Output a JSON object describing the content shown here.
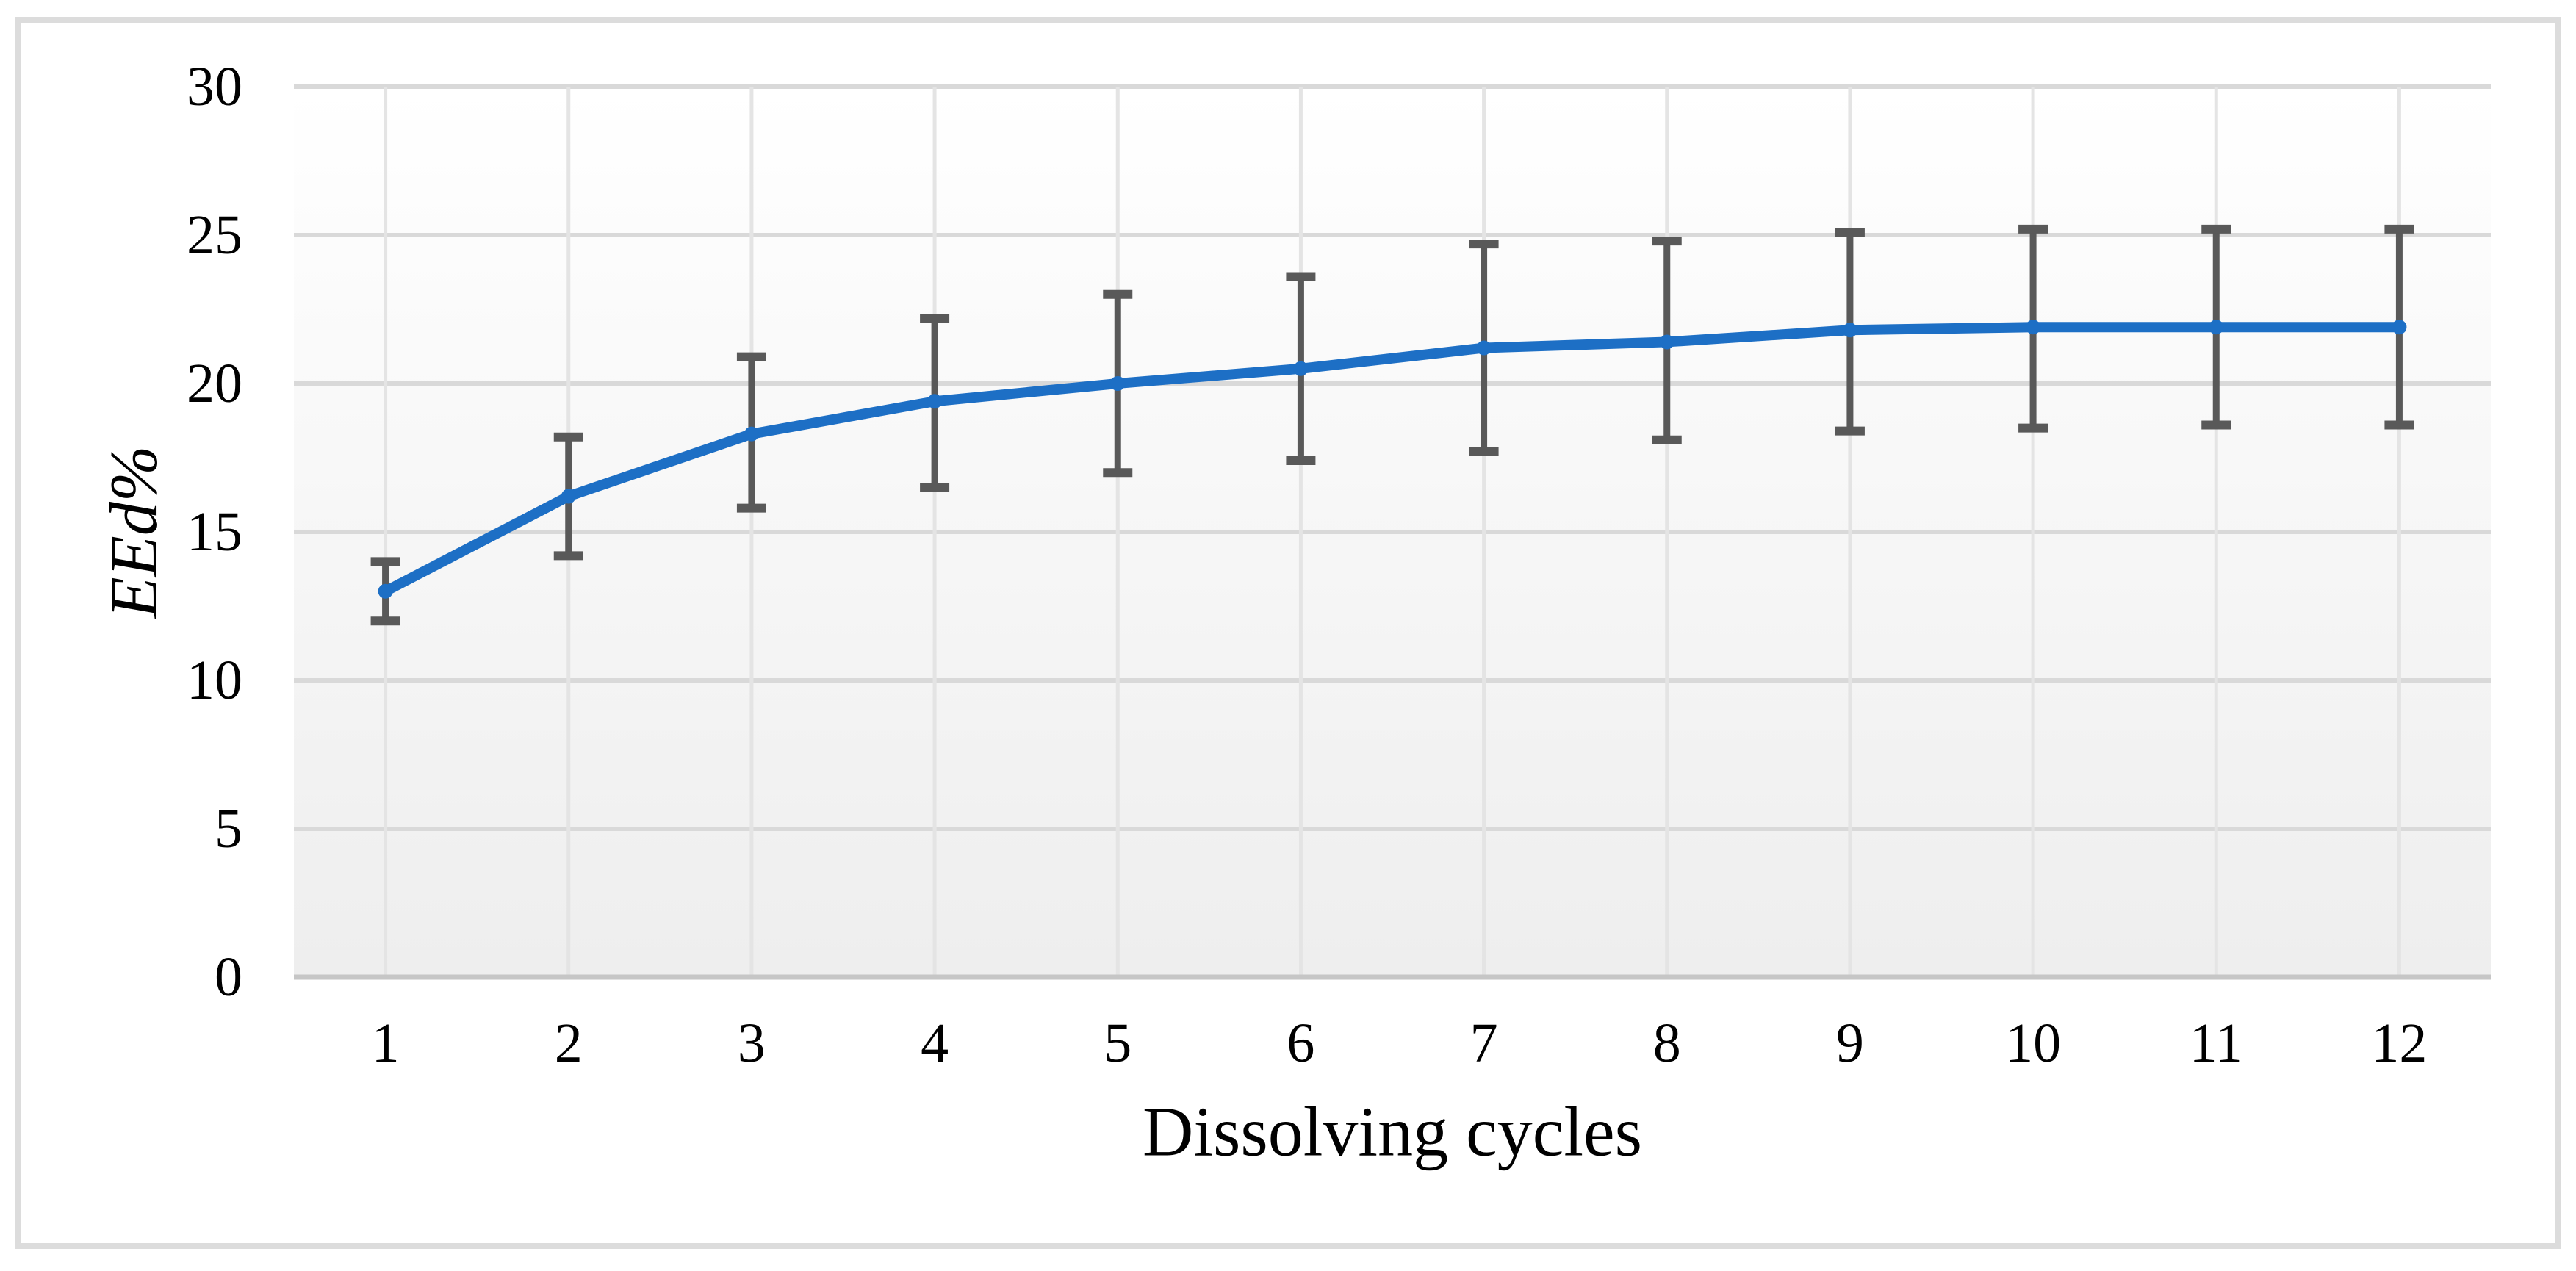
{
  "chart_data": {
    "type": "line",
    "title": "",
    "xlabel": "Dissolving cycles",
    "ylabel": "EEd%",
    "categories": [
      "1",
      "2",
      "3",
      "4",
      "5",
      "6",
      "7",
      "8",
      "9",
      "10",
      "11",
      "12"
    ],
    "series": [
      {
        "name": "EEd%",
        "values": [
          13.0,
          16.2,
          18.3,
          19.4,
          20.0,
          20.5,
          21.2,
          21.4,
          21.8,
          21.9,
          21.9,
          21.9
        ],
        "error_low": [
          12.0,
          14.2,
          15.8,
          16.5,
          17.0,
          17.4,
          17.7,
          18.1,
          18.4,
          18.5,
          18.6,
          18.6
        ],
        "error_high": [
          14.0,
          18.2,
          20.9,
          22.2,
          23.0,
          23.6,
          24.7,
          24.8,
          25.1,
          25.2,
          25.2,
          25.2
        ]
      }
    ],
    "ylim": [
      0,
      30
    ],
    "y_ticks": [
      0,
      5,
      10,
      15,
      20,
      25,
      30
    ],
    "grid": true,
    "legend": false
  },
  "style": {
    "line_color": "#1d6fc5",
    "error_bar_color": "#595959",
    "h_gridline_color": "#d9d9d9",
    "v_gridline_color": "#e4e4e4",
    "axis_line_color": "#c6c6c6",
    "frame_border_color": "#dcdcdc",
    "plot_bg_top": "#ffffff",
    "plot_bg_bottom": "#eeeeee",
    "text_color": "#000000"
  }
}
